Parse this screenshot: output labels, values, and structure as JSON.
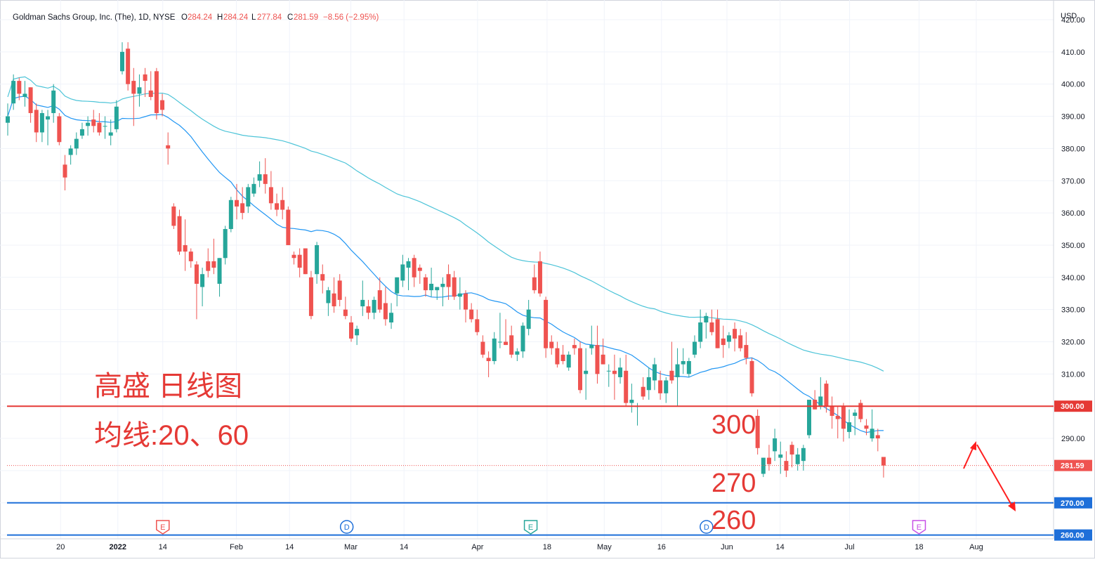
{
  "header": {
    "symbol": "Goldman Sachs Group, Inc. (The), 1D, NYSE",
    "o_label": "O",
    "o_value": "284.24",
    "h_label": "H",
    "h_value": "284.24",
    "l_label": "L",
    "l_value": "277.84",
    "c_label": "C",
    "c_value": "281.59",
    "change": "−8.56 (−2.95%)"
  },
  "currency": "USD",
  "annotations": {
    "title": "高盛 日线图",
    "ma_label": "均线:20、60",
    "level_300": "300",
    "level_270": "270",
    "level_260": "260"
  },
  "colors": {
    "up": "#26a69a",
    "down": "#ef5350",
    "ma20": "#2196f3",
    "ma60": "#4dc4d8",
    "line_300": "#e53935",
    "line_270": "#1e6fd9",
    "annotation_text": "#e53935"
  },
  "chart_data": {
    "type": "candlestick",
    "title": "",
    "ylim": [
      258,
      426
    ],
    "y_ticks": [
      260,
      270,
      280,
      290,
      300,
      310,
      320,
      330,
      340,
      350,
      360,
      370,
      380,
      390,
      400,
      410,
      420
    ],
    "y_tick_labels": [
      "260.00",
      "270.00",
      "280.00",
      "290.00",
      "300.00",
      "310.00",
      "320.00",
      "330.00",
      "340.00",
      "350.00",
      "360.00",
      "370.00",
      "380.00",
      "390.00",
      "400.00",
      "410.00",
      "420.00"
    ],
    "x_ticks": [
      {
        "label": "20",
        "date": "2021-12-20"
      },
      {
        "label": "2022",
        "date": "2022-01-03"
      },
      {
        "label": "14",
        "date": "2022-01-14"
      },
      {
        "label": "Feb",
        "date": "2022-02-01"
      },
      {
        "label": "14",
        "date": "2022-02-14"
      },
      {
        "label": "Mar",
        "date": "2022-03-01"
      },
      {
        "label": "14",
        "date": "2022-03-14"
      },
      {
        "label": "Apr",
        "date": "2022-04-01"
      },
      {
        "label": "18",
        "date": "2022-04-18"
      },
      {
        "label": "May",
        "date": "2022-05-02"
      },
      {
        "label": "16",
        "date": "2022-05-16"
      },
      {
        "label": "Jun",
        "date": "2022-06-01"
      },
      {
        "label": "14",
        "date": "2022-06-14"
      },
      {
        "label": "Jul",
        "date": "2022-07-01"
      },
      {
        "label": "18",
        "date": "2022-07-18"
      },
      {
        "label": "Aug",
        "date": "2022-08-01"
      }
    ],
    "horizontal_lines": [
      {
        "value": 300,
        "label": "300.00",
        "color": "#e53935"
      },
      {
        "value": 270,
        "label": "270.00",
        "color": "#1e6fd9"
      },
      {
        "value": 260,
        "label": "260.00",
        "color": "#1e6fd9"
      }
    ],
    "last_price": {
      "value": 281.59,
      "label": "281.59"
    },
    "events": [
      {
        "type": "E",
        "date": "2022-01-14"
      },
      {
        "type": "D",
        "date": "2022-02-28"
      },
      {
        "type": "E",
        "date": "2022-04-14"
      },
      {
        "type": "D",
        "date": "2022-05-27"
      },
      {
        "type": "E",
        "date": "2022-07-18"
      }
    ],
    "candles": [
      {
        "o": 388,
        "h": 394,
        "l": 384,
        "c": 390
      },
      {
        "o": 394,
        "h": 403,
        "l": 392,
        "c": 401
      },
      {
        "o": 401,
        "h": 402,
        "l": 395,
        "c": 397
      },
      {
        "o": 396,
        "h": 401,
        "l": 393,
        "c": 397
      },
      {
        "o": 399,
        "h": 399,
        "l": 388,
        "c": 391
      },
      {
        "o": 392,
        "h": 394,
        "l": 382,
        "c": 385
      },
      {
        "o": 385,
        "h": 392,
        "l": 382,
        "c": 391
      },
      {
        "o": 389,
        "h": 392,
        "l": 381,
        "c": 390
      },
      {
        "o": 391,
        "h": 400,
        "l": 388,
        "c": 398
      },
      {
        "o": 390,
        "h": 391,
        "l": 381,
        "c": 382
      },
      {
        "o": 375,
        "h": 378,
        "l": 367,
        "c": 371
      },
      {
        "o": 378,
        "h": 381,
        "l": 375,
        "c": 380
      },
      {
        "o": 380,
        "h": 385,
        "l": 378,
        "c": 383
      },
      {
        "o": 384,
        "h": 388,
        "l": 383,
        "c": 386
      },
      {
        "o": 387,
        "h": 390,
        "l": 384,
        "c": 388
      },
      {
        "o": 389,
        "h": 392,
        "l": 385,
        "c": 387
      },
      {
        "o": 388,
        "h": 391,
        "l": 384,
        "c": 385
      },
      {
        "o": 387,
        "h": 390,
        "l": 383,
        "c": 387
      },
      {
        "o": 384,
        "h": 389,
        "l": 381,
        "c": 385
      },
      {
        "o": 386,
        "h": 395,
        "l": 385,
        "c": 393
      },
      {
        "o": 404,
        "h": 413,
        "l": 403,
        "c": 410
      },
      {
        "o": 411,
        "h": 413,
        "l": 398,
        "c": 400
      },
      {
        "o": 401,
        "h": 405,
        "l": 387,
        "c": 397
      },
      {
        "o": 397,
        "h": 403,
        "l": 393,
        "c": 399
      },
      {
        "o": 403,
        "h": 405,
        "l": 396,
        "c": 401
      },
      {
        "o": 398,
        "h": 404,
        "l": 395,
        "c": 396
      },
      {
        "o": 404,
        "h": 405,
        "l": 389,
        "c": 391
      },
      {
        "o": 395,
        "h": 397,
        "l": 390,
        "c": 392
      },
      {
        "o": 381,
        "h": 385,
        "l": 375,
        "c": 380
      },
      {
        "o": 362,
        "h": 363,
        "l": 355,
        "c": 356
      },
      {
        "o": 359,
        "h": 361,
        "l": 347,
        "c": 348
      },
      {
        "o": 350,
        "h": 358,
        "l": 342,
        "c": 348
      },
      {
        "o": 348,
        "h": 349,
        "l": 343,
        "c": 345
      },
      {
        "o": 344,
        "h": 345,
        "l": 327,
        "c": 338
      },
      {
        "o": 337,
        "h": 343,
        "l": 331,
        "c": 341
      },
      {
        "o": 345,
        "h": 349,
        "l": 340,
        "c": 342
      },
      {
        "o": 345,
        "h": 352,
        "l": 341,
        "c": 343
      },
      {
        "o": 338,
        "h": 346,
        "l": 334,
        "c": 346
      },
      {
        "o": 346,
        "h": 356,
        "l": 344,
        "c": 355
      },
      {
        "o": 355,
        "h": 365,
        "l": 354,
        "c": 364
      },
      {
        "o": 364,
        "h": 369,
        "l": 358,
        "c": 362
      },
      {
        "o": 363,
        "h": 368,
        "l": 358,
        "c": 360
      },
      {
        "o": 362,
        "h": 369,
        "l": 360,
        "c": 368
      },
      {
        "o": 366,
        "h": 371,
        "l": 365,
        "c": 369
      },
      {
        "o": 370,
        "h": 376,
        "l": 368,
        "c": 372
      },
      {
        "o": 372,
        "h": 377,
        "l": 366,
        "c": 369
      },
      {
        "o": 368,
        "h": 373,
        "l": 361,
        "c": 363
      },
      {
        "o": 363,
        "h": 366,
        "l": 359,
        "c": 361
      },
      {
        "o": 364,
        "h": 368,
        "l": 358,
        "c": 361
      },
      {
        "o": 361,
        "h": 362,
        "l": 350,
        "c": 350
      },
      {
        "o": 347,
        "h": 348,
        "l": 344,
        "c": 346
      },
      {
        "o": 347,
        "h": 349,
        "l": 340,
        "c": 343
      },
      {
        "o": 349,
        "h": 349,
        "l": 341,
        "c": 341
      },
      {
        "o": 340,
        "h": 342,
        "l": 327,
        "c": 328
      },
      {
        "o": 341,
        "h": 351,
        "l": 338,
        "c": 350
      },
      {
        "o": 341,
        "h": 344,
        "l": 335,
        "c": 339
      },
      {
        "o": 332,
        "h": 337,
        "l": 328,
        "c": 336
      },
      {
        "o": 335,
        "h": 340,
        "l": 329,
        "c": 331
      },
      {
        "o": 339,
        "h": 341,
        "l": 331,
        "c": 333
      },
      {
        "o": 330,
        "h": 334,
        "l": 327,
        "c": 328
      },
      {
        "o": 326,
        "h": 328,
        "l": 320,
        "c": 321
      },
      {
        "o": 322,
        "h": 325,
        "l": 319,
        "c": 324
      },
      {
        "o": 331,
        "h": 339,
        "l": 328,
        "c": 333
      },
      {
        "o": 331,
        "h": 333,
        "l": 327,
        "c": 329
      },
      {
        "o": 329,
        "h": 334,
        "l": 327,
        "c": 333
      },
      {
        "o": 336,
        "h": 340,
        "l": 329,
        "c": 330
      },
      {
        "o": 332,
        "h": 337,
        "l": 325,
        "c": 327
      },
      {
        "o": 326,
        "h": 332,
        "l": 324,
        "c": 329
      },
      {
        "o": 335,
        "h": 340,
        "l": 331,
        "c": 340
      },
      {
        "o": 339,
        "h": 347,
        "l": 337,
        "c": 344
      },
      {
        "o": 343,
        "h": 346,
        "l": 336,
        "c": 345
      },
      {
        "o": 346,
        "h": 347,
        "l": 337,
        "c": 340
      },
      {
        "o": 343,
        "h": 344,
        "l": 338,
        "c": 342
      },
      {
        "o": 340,
        "h": 341,
        "l": 334,
        "c": 336
      },
      {
        "o": 336,
        "h": 343,
        "l": 334,
        "c": 338
      },
      {
        "o": 336,
        "h": 337,
        "l": 333,
        "c": 337
      },
      {
        "o": 337,
        "h": 340,
        "l": 331,
        "c": 338
      },
      {
        "o": 341,
        "h": 344,
        "l": 333,
        "c": 337
      },
      {
        "o": 340,
        "h": 342,
        "l": 333,
        "c": 334
      },
      {
        "o": 334,
        "h": 340,
        "l": 330,
        "c": 335
      },
      {
        "o": 335,
        "h": 336,
        "l": 326,
        "c": 330
      },
      {
        "o": 330,
        "h": 332,
        "l": 326,
        "c": 327
      },
      {
        "o": 327,
        "h": 330,
        "l": 322,
        "c": 323
      },
      {
        "o": 320,
        "h": 322,
        "l": 315,
        "c": 316
      },
      {
        "o": 315,
        "h": 317,
        "l": 309,
        "c": 314
      },
      {
        "o": 314,
        "h": 323,
        "l": 313,
        "c": 321
      },
      {
        "o": 320,
        "h": 329,
        "l": 318,
        "c": 320
      },
      {
        "o": 320,
        "h": 327,
        "l": 319,
        "c": 319
      },
      {
        "o": 322,
        "h": 325,
        "l": 315,
        "c": 316
      },
      {
        "o": 316,
        "h": 318,
        "l": 314,
        "c": 317
      },
      {
        "o": 317,
        "h": 326,
        "l": 315,
        "c": 325
      },
      {
        "o": 324,
        "h": 333,
        "l": 322,
        "c": 330
      },
      {
        "o": 340,
        "h": 344,
        "l": 335,
        "c": 336
      },
      {
        "o": 345,
        "h": 348,
        "l": 334,
        "c": 335
      },
      {
        "o": 333,
        "h": 334,
        "l": 315,
        "c": 318
      },
      {
        "o": 320,
        "h": 322,
        "l": 316,
        "c": 318
      },
      {
        "o": 318,
        "h": 320,
        "l": 312,
        "c": 313
      },
      {
        "o": 316,
        "h": 319,
        "l": 313,
        "c": 314
      },
      {
        "o": 312,
        "h": 317,
        "l": 311,
        "c": 316
      },
      {
        "o": 319,
        "h": 321,
        "l": 316,
        "c": 318
      },
      {
        "o": 318,
        "h": 320,
        "l": 304,
        "c": 305
      },
      {
        "o": 310,
        "h": 318,
        "l": 302,
        "c": 311
      },
      {
        "o": 318,
        "h": 325,
        "l": 316,
        "c": 319
      },
      {
        "o": 319,
        "h": 325,
        "l": 307,
        "c": 310
      },
      {
        "o": 316,
        "h": 321,
        "l": 313,
        "c": 313
      },
      {
        "o": 311,
        "h": 313,
        "l": 306,
        "c": 311
      },
      {
        "o": 311,
        "h": 316,
        "l": 302,
        "c": 310
      },
      {
        "o": 309,
        "h": 315,
        "l": 307,
        "c": 312
      },
      {
        "o": 311,
        "h": 316,
        "l": 300,
        "c": 301
      },
      {
        "o": 301,
        "h": 307,
        "l": 298,
        "c": 302
      },
      {
        "o": 300,
        "h": 301,
        "l": 294,
        "c": 300
      },
      {
        "o": 306,
        "h": 309,
        "l": 302,
        "c": 303
      },
      {
        "o": 305,
        "h": 312,
        "l": 302,
        "c": 309
      },
      {
        "o": 308,
        "h": 315,
        "l": 305,
        "c": 313
      },
      {
        "o": 308,
        "h": 311,
        "l": 302,
        "c": 304
      },
      {
        "o": 304,
        "h": 309,
        "l": 301,
        "c": 308
      },
      {
        "o": 311,
        "h": 320,
        "l": 307,
        "c": 308
      },
      {
        "o": 309,
        "h": 318,
        "l": 300,
        "c": 313
      },
      {
        "o": 313,
        "h": 318,
        "l": 310,
        "c": 314
      },
      {
        "o": 310,
        "h": 315,
        "l": 309,
        "c": 314
      },
      {
        "o": 316,
        "h": 322,
        "l": 315,
        "c": 320
      },
      {
        "o": 320,
        "h": 330,
        "l": 318,
        "c": 326
      },
      {
        "o": 326,
        "h": 329,
        "l": 321,
        "c": 328
      },
      {
        "o": 326,
        "h": 330,
        "l": 322,
        "c": 323
      },
      {
        "o": 327,
        "h": 330,
        "l": 318,
        "c": 318
      },
      {
        "o": 321,
        "h": 325,
        "l": 315,
        "c": 319
      },
      {
        "o": 320,
        "h": 323,
        "l": 318,
        "c": 322
      },
      {
        "o": 324,
        "h": 326,
        "l": 317,
        "c": 321
      },
      {
        "o": 322,
        "h": 324,
        "l": 317,
        "c": 318
      },
      {
        "o": 319,
        "h": 323,
        "l": 313,
        "c": 315
      },
      {
        "o": 314,
        "h": 315,
        "l": 303,
        "c": 304
      },
      {
        "o": 297,
        "h": 299,
        "l": 285,
        "c": 287
      },
      {
        "o": 279,
        "h": 284,
        "l": 278,
        "c": 284
      },
      {
        "o": 284,
        "h": 288,
        "l": 280,
        "c": 282
      },
      {
        "o": 286,
        "h": 293,
        "l": 283,
        "c": 290
      },
      {
        "o": 284,
        "h": 289,
        "l": 279,
        "c": 285
      },
      {
        "o": 283,
        "h": 286,
        "l": 278,
        "c": 280
      },
      {
        "o": 288,
        "h": 289,
        "l": 281,
        "c": 285
      },
      {
        "o": 282,
        "h": 287,
        "l": 280,
        "c": 285
      },
      {
        "o": 283,
        "h": 288,
        "l": 280,
        "c": 287
      },
      {
        "o": 291,
        "h": 302,
        "l": 290,
        "c": 302
      },
      {
        "o": 302,
        "h": 305,
        "l": 299,
        "c": 299
      },
      {
        "o": 300,
        "h": 309,
        "l": 299,
        "c": 303
      },
      {
        "o": 307,
        "h": 308,
        "l": 298,
        "c": 300
      },
      {
        "o": 300,
        "h": 303,
        "l": 293,
        "c": 297
      },
      {
        "o": 297,
        "h": 300,
        "l": 290,
        "c": 296
      },
      {
        "o": 300,
        "h": 301,
        "l": 289,
        "c": 293
      },
      {
        "o": 292,
        "h": 299,
        "l": 290,
        "c": 295
      },
      {
        "o": 297,
        "h": 299,
        "l": 291,
        "c": 298
      },
      {
        "o": 301,
        "h": 302,
        "l": 295,
        "c": 296
      },
      {
        "o": 294,
        "h": 296,
        "l": 291,
        "c": 293
      },
      {
        "o": 290,
        "h": 299,
        "l": 289,
        "c": 293
      },
      {
        "o": 291,
        "h": 293,
        "l": 286,
        "c": 290
      },
      {
        "o": 284.24,
        "h": 284.24,
        "l": 277.84,
        "c": 281.59
      }
    ]
  }
}
